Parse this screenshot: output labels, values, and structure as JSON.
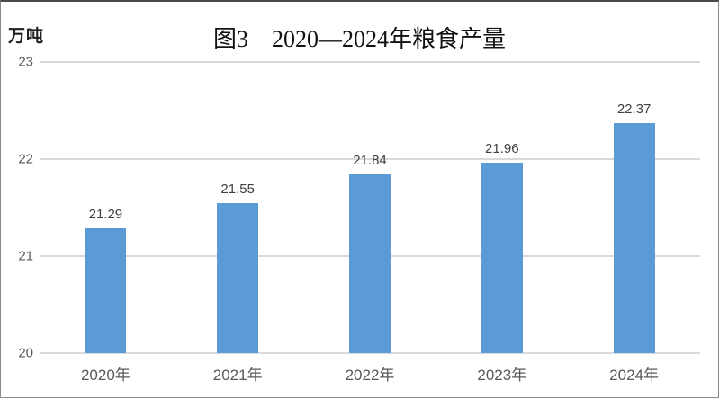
{
  "page": {
    "background_color": "#ffffff",
    "border_color": "#8a8a8a"
  },
  "header": {
    "title": "图3　2020—2024年粮食产量",
    "unit_label": "万吨"
  },
  "chart_data": {
    "type": "bar",
    "title": "图3　2020—2024年粮食产量",
    "ylabel": "万吨",
    "xlabel": "",
    "categories": [
      "2020年",
      "2021年",
      "2022年",
      "2023年",
      "2024年"
    ],
    "values": [
      21.29,
      21.55,
      21.84,
      21.96,
      22.37
    ],
    "data_labels": [
      "21.29",
      "21.55",
      "21.84",
      "21.96",
      "22.37"
    ],
    "ylim": [
      20,
      23
    ],
    "yticks": [
      20,
      21,
      22,
      23
    ],
    "ytick_labels": [
      "20",
      "21",
      "22",
      "23"
    ],
    "grid": true,
    "legend": "none",
    "bar_color": "#5b9bd5",
    "gridline_color": "#d9d9d9",
    "data_label_color": "#404040",
    "axis_tick_color": "#595959",
    "title_color": "#111111"
  }
}
